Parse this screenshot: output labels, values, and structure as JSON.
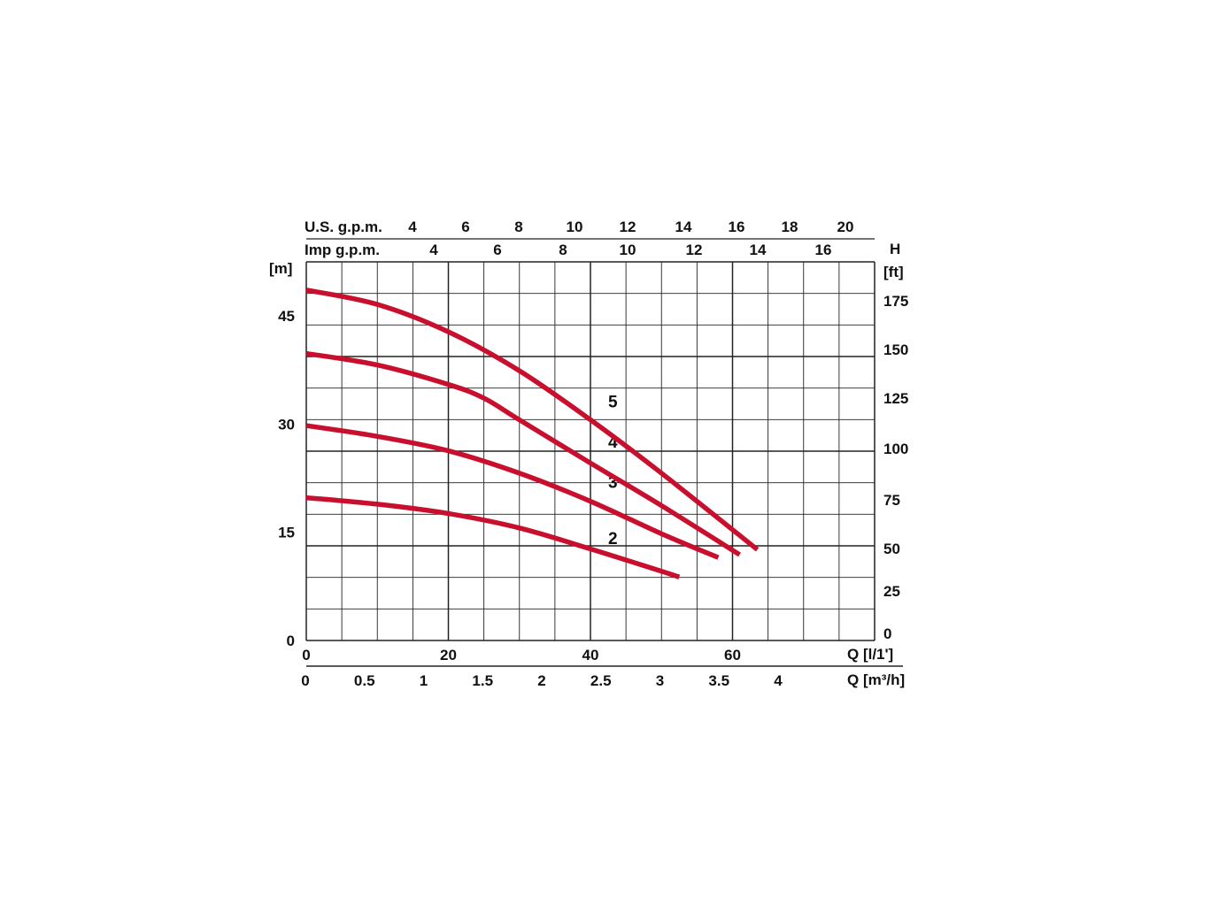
{
  "chart_data": {
    "type": "line",
    "title": "",
    "series": [
      {
        "name": "2",
        "x": [
          0,
          10,
          20,
          30,
          40,
          50,
          52.5
        ],
        "y": [
          19.8,
          18.9,
          17.6,
          15.6,
          12.7,
          9.6,
          8.8
        ]
      },
      {
        "name": "3",
        "x": [
          0,
          10,
          20,
          30,
          40,
          50,
          58
        ],
        "y": [
          29.8,
          28.3,
          26.3,
          23.2,
          19.3,
          14.8,
          11.5
        ]
      },
      {
        "name": "4",
        "x": [
          0,
          10,
          20,
          25,
          30,
          40,
          50,
          61
        ],
        "y": [
          39.8,
          38.2,
          35.5,
          33.6,
          30.6,
          24.6,
          18.7,
          11.9
        ]
      },
      {
        "name": "5",
        "x": [
          0,
          10,
          20,
          30,
          40,
          50,
          63.5
        ],
        "y": [
          48.6,
          46.6,
          42.8,
          37.4,
          30.6,
          23.2,
          12.6
        ]
      }
    ],
    "axes": {
      "left": {
        "label": "[m]",
        "ticks": [
          "0",
          "15",
          "30",
          "45"
        ],
        "range": [
          0,
          52.5
        ]
      },
      "right": {
        "label_top": "H",
        "label": "[ft]",
        "ticks": [
          "0",
          "25",
          "50",
          "75",
          "100",
          "125",
          "150",
          "175"
        ]
      },
      "bottom_primary": {
        "label": "Q [l/1']",
        "ticks": [
          "0",
          "20",
          "40",
          "60"
        ],
        "range": [
          0,
          80
        ]
      },
      "bottom_secondary": {
        "label": "Q [m³/h]",
        "ticks": [
          "0",
          "0.5",
          "1",
          "1.5",
          "2",
          "2.5",
          "3",
          "3.5",
          "4"
        ]
      },
      "top_us": {
        "label": "U.S. g.p.m.",
        "ticks": [
          "4",
          "6",
          "8",
          "10",
          "12",
          "14",
          "16",
          "18",
          "20"
        ]
      },
      "top_imp": {
        "label": "Imp g.p.m.",
        "ticks": [
          "4",
          "6",
          "8",
          "10",
          "12",
          "14",
          "16"
        ]
      }
    },
    "grid": true,
    "colors": {
      "curve": "#c8102e",
      "grid": "#222222"
    }
  }
}
